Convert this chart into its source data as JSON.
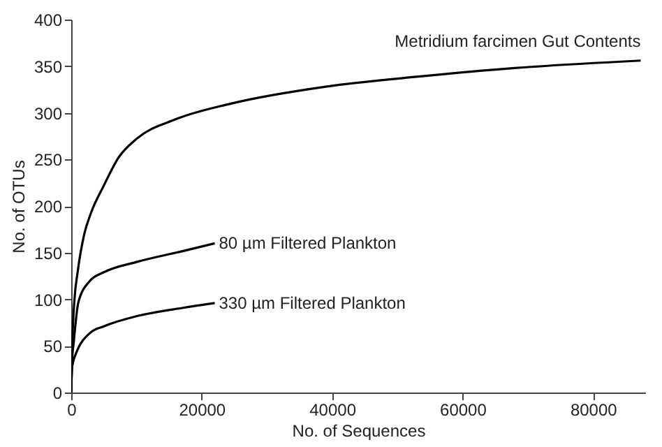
{
  "chart_data": {
    "type": "line",
    "xlabel": "No. of Sequences",
    "ylabel": "No. of OTUs",
    "xlim": [
      0,
      88000
    ],
    "ylim": [
      0,
      400
    ],
    "xticks": [
      0,
      20000,
      40000,
      60000,
      80000
    ],
    "yticks": [
      0,
      50,
      100,
      150,
      200,
      250,
      300,
      350,
      400
    ],
    "grid": false,
    "legend": false,
    "marker": "none",
    "line_style": "solid",
    "series": [
      {
        "name": "Metridium farcimen Gut Contents",
        "color": "#000000",
        "x": [
          0,
          200,
          500,
          1000,
          2000,
          3000,
          5000,
          7250,
          10000,
          16000,
          24600,
          39000,
          53500,
          68000,
          87300
        ],
        "values": [
          0,
          60,
          100,
          130,
          170,
          192,
          222,
          252,
          272,
          293,
          310,
          328,
          339,
          348,
          356
        ]
      },
      {
        "name": "80 µm Filtered Plankton",
        "color": "#000000",
        "x": [
          0,
          100,
          400,
          1100,
          2900,
          5000,
          10000,
          17300,
          22000
        ],
        "values": [
          0,
          30,
          55,
          97,
          120,
          129,
          140,
          152,
          160
        ]
      },
      {
        "name": "330 µm Filtered Plankton",
        "color": "#000000",
        "x": [
          0,
          100,
          300,
          740,
          2900,
          5000,
          10100,
          17300,
          22000
        ],
        "values": [
          0,
          25,
          33,
          42,
          64,
          71,
          82,
          91,
          96
        ]
      }
    ]
  }
}
